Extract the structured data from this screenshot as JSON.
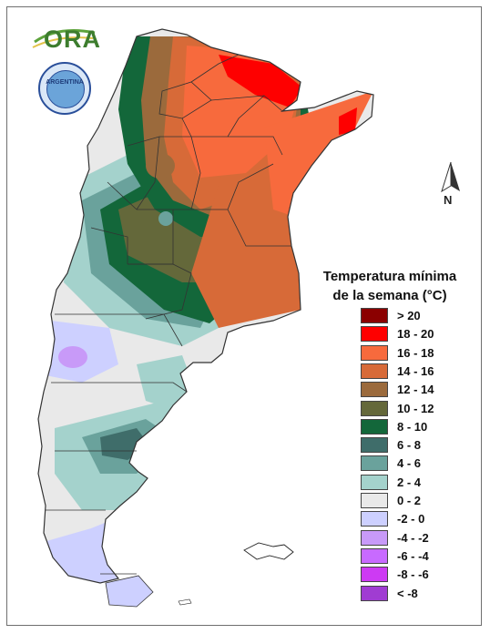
{
  "logo": {
    "text": "ORA"
  },
  "seal": {
    "text": "ARGENTINA"
  },
  "north": {
    "label": "N"
  },
  "legend": {
    "title_line1": "Temperatura mínima",
    "title_line2": "de la semana (°C)",
    "items": [
      {
        "label": "> 20",
        "color": "#8b0000"
      },
      {
        "label": "18 - 20",
        "color": "#fe0000"
      },
      {
        "label": "16 - 18",
        "color": "#f76a3d"
      },
      {
        "label": "14 - 16",
        "color": "#d76a38"
      },
      {
        "label": "12 - 14",
        "color": "#9b6a3c"
      },
      {
        "label": "10 - 12",
        "color": "#64683a"
      },
      {
        "label": "8 - 10",
        "color": "#13673a"
      },
      {
        "label": "6 - 8",
        "color": "#3f6d6a"
      },
      {
        "label": "4 - 6",
        "color": "#6aa29c"
      },
      {
        "label": "2 - 4",
        "color": "#a4d2cc"
      },
      {
        "label": "0 - 2",
        "color": "#e9e9e9"
      },
      {
        "label": "-2 - 0",
        "color": "#cdd0ff"
      },
      {
        "label": "-4 - -2",
        "color": "#c89af8"
      },
      {
        "label": "-6 - -4",
        "color": "#c86aff"
      },
      {
        "label": "-8 - -6",
        "color": "#cd3af3"
      },
      {
        "label": "< -8",
        "color": "#a03cd2"
      }
    ]
  }
}
